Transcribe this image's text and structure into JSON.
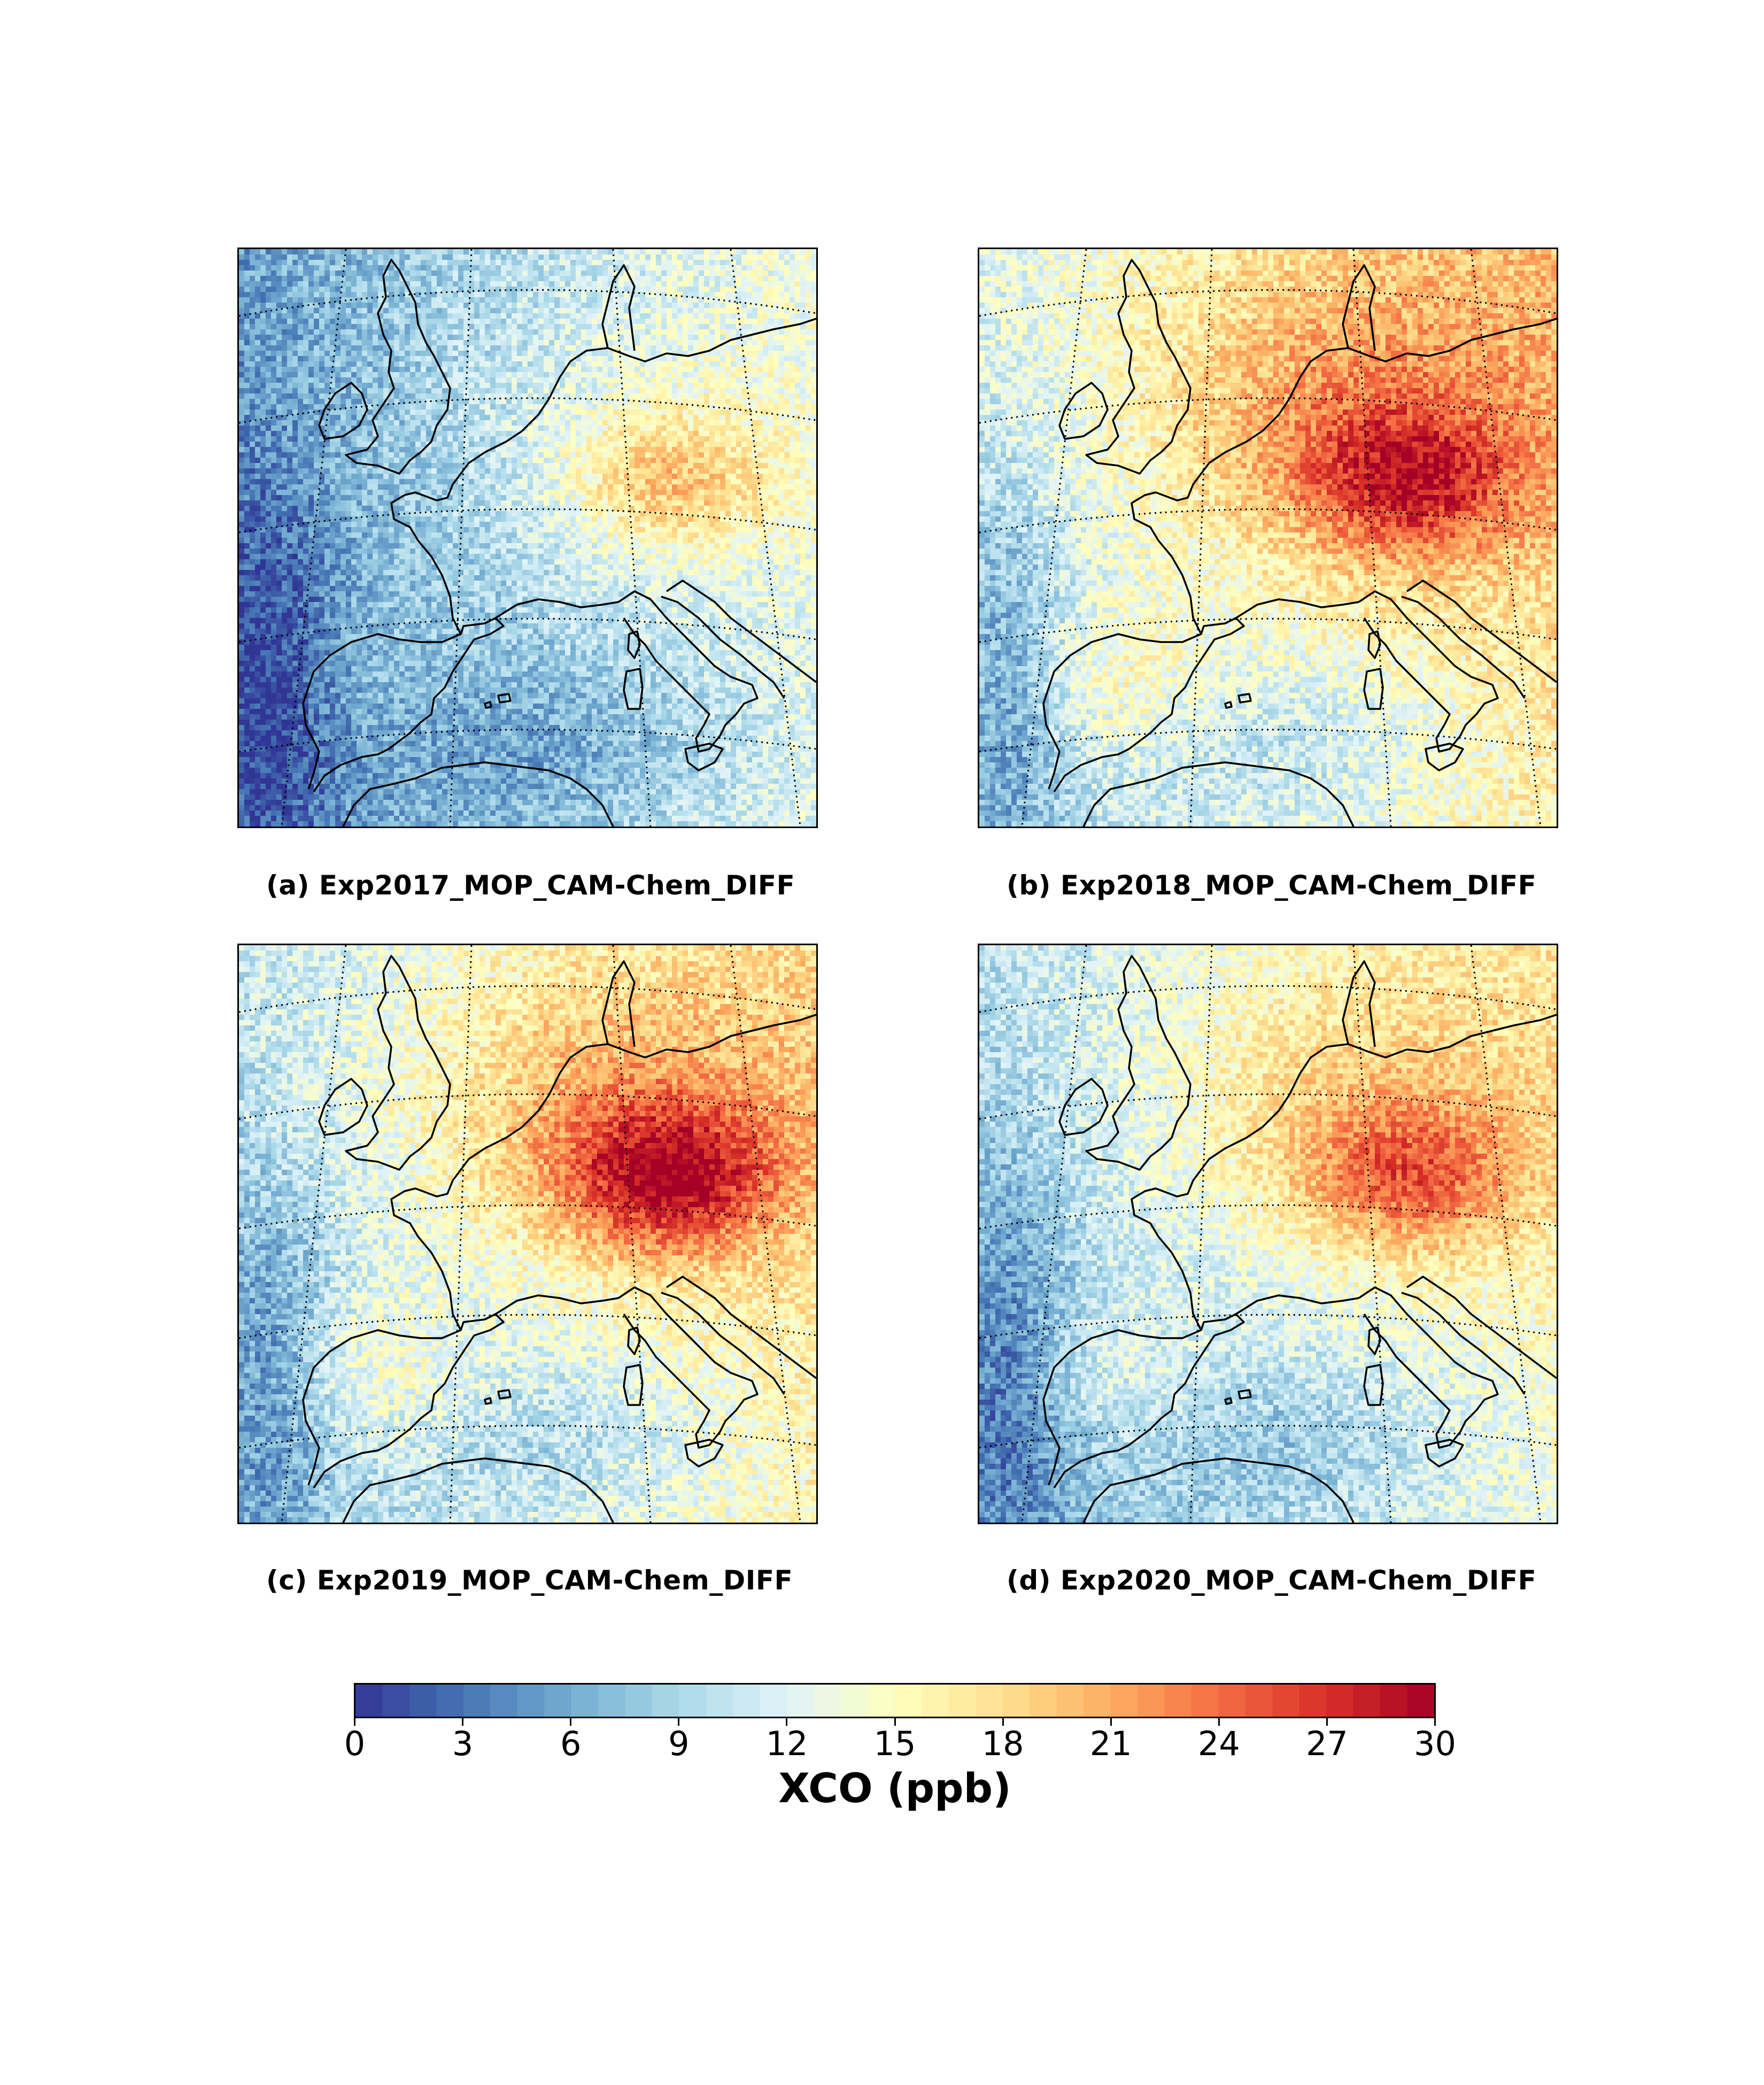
{
  "panels": [
    {
      "id": "a",
      "caption": "(a) Exp2017_MOP_CAM-Chem_DIFF"
    },
    {
      "id": "b",
      "caption": "(b) Exp2018_MOP_CAM-Chem_DIFF"
    },
    {
      "id": "c",
      "caption": "(c) Exp2019_MOP_CAM-Chem_DIFF"
    },
    {
      "id": "d",
      "caption": "(d) Exp2020_MOP_CAM-Chem_DIFF"
    }
  ],
  "colorbar": {
    "label": "XCO (ppb)",
    "min": 0,
    "max": 30,
    "ticks": [
      "0",
      "3",
      "6",
      "9",
      "12",
      "15",
      "18",
      "21",
      "24",
      "27",
      "30"
    ],
    "colormap": "RdYlBu_r",
    "colors": [
      "#313695",
      "#4575b4",
      "#74add1",
      "#abd9e9",
      "#e0f3f8",
      "#ffffbf",
      "#fee090",
      "#fdae61",
      "#f46d43",
      "#d73027",
      "#a50026"
    ]
  },
  "map": {
    "region": "Western Europe",
    "gridlines": "dotted",
    "coastlines": true
  }
}
